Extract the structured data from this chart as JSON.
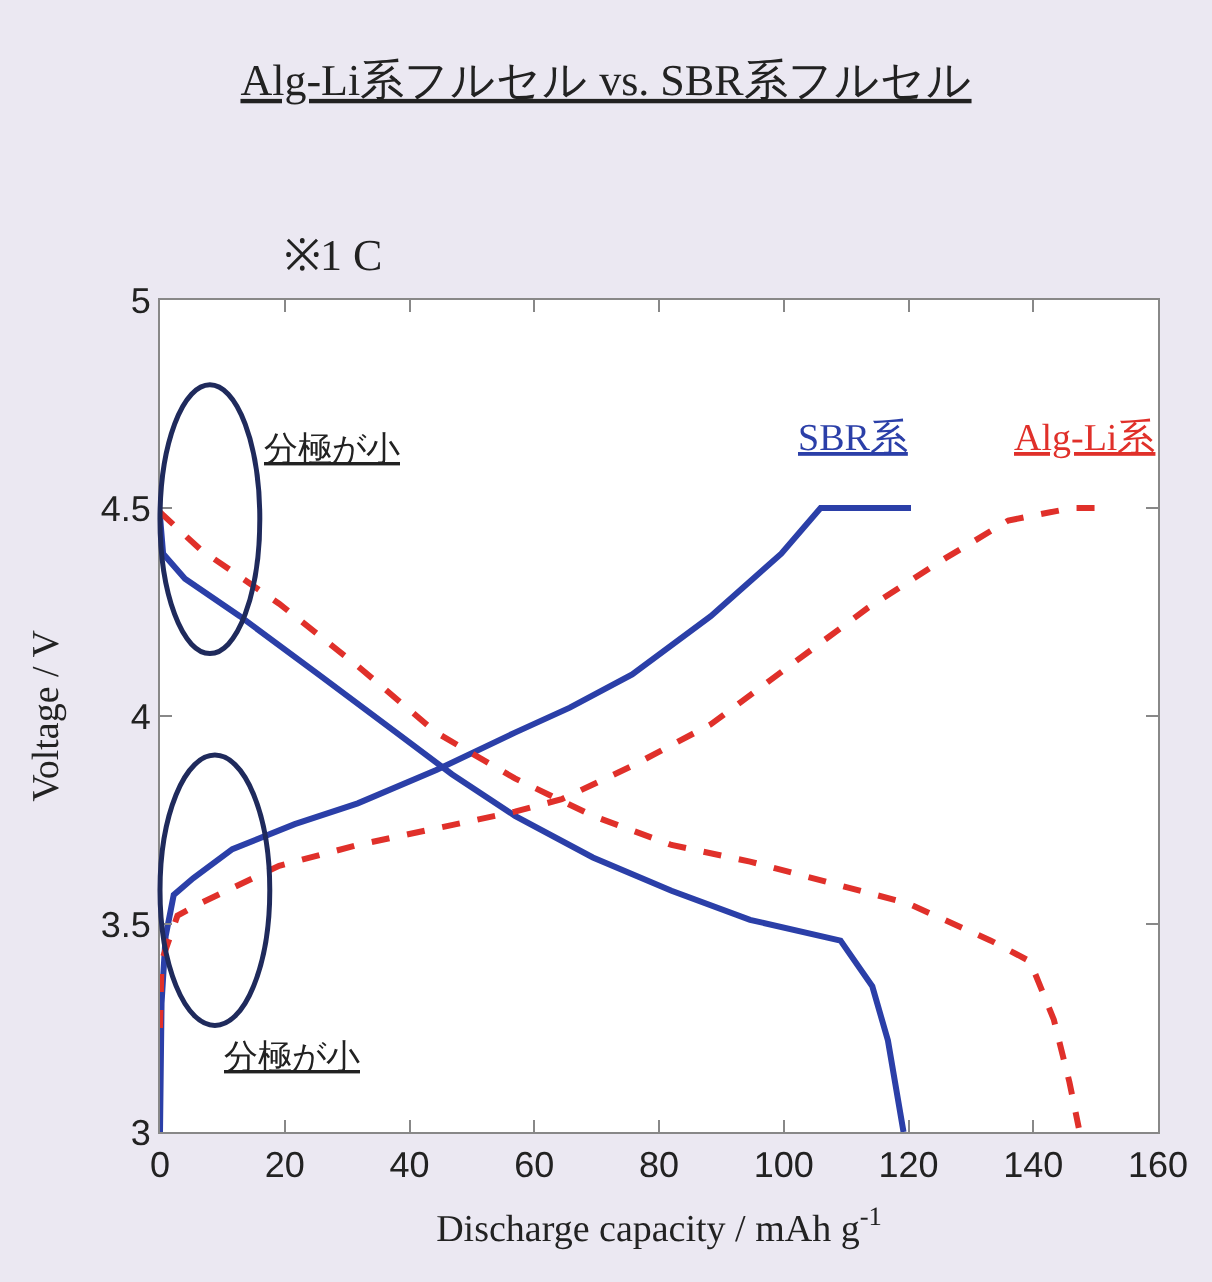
{
  "chart_data": {
    "type": "line",
    "title": "Alg-Li系フルセル vs. SBR系フルセル",
    "xlabel": "Discharge capacity / mAh g$^{-1}$",
    "ylabel": "Voltage / V",
    "xlim": [
      0,
      160
    ],
    "xticks": [
      0,
      20,
      40,
      60,
      80,
      100,
      120,
      140,
      160
    ],
    "ylim": [
      3,
      5
    ],
    "yticks": [
      3,
      3.5,
      4,
      4.5,
      5
    ],
    "legend": false,
    "marker": "none",
    "annotations": [
      "※1 C",
      "分極が小",
      "分極が小"
    ],
    "series": [
      {
        "name": "SBR系",
        "color": "#2b3fa8",
        "line_style": "solid",
        "x": [
          0,
          0.25,
          0.9,
          2.2,
          5.3,
          11.6,
          21.6,
          31.7,
          44.3,
          56.9,
          65.7,
          75.7,
          88.3,
          99.6,
          105.9,
          120.4
        ],
        "values": [
          3.0,
          3.31,
          3.47,
          3.57,
          3.61,
          3.68,
          3.74,
          3.79,
          3.87,
          3.96,
          4.02,
          4.1,
          4.24,
          4.39,
          4.5,
          4.5
        ]
      },
      {
        "color": "#2b3fa8",
        "line_style": "solid",
        "x": [
          0,
          0.5,
          4,
          12.8,
          25.4,
          37.9,
          46.8,
          56.9,
          69.4,
          82,
          94.6,
          109.1,
          114.2,
          116.7,
          119.2
        ],
        "values": [
          4.48,
          4.39,
          4.33,
          4.24,
          4.1,
          3.96,
          3.86,
          3.76,
          3.66,
          3.58,
          3.51,
          3.46,
          3.35,
          3.22,
          3.0
        ]
      },
      {
        "name": "Alg-Li系",
        "color": "#e0302a",
        "line_style": "dashed",
        "x": [
          0,
          0.25,
          2.8,
          6.5,
          19.1,
          31.7,
          44.3,
          56.9,
          64.4,
          75.7,
          88.3,
          100.9,
          113.5,
          126,
          136,
          146.2,
          150.6
        ],
        "values": [
          3.25,
          3.41,
          3.52,
          3.55,
          3.64,
          3.69,
          3.73,
          3.77,
          3.8,
          3.88,
          3.98,
          4.12,
          4.26,
          4.38,
          4.47,
          4.5,
          4.5
        ]
      },
      {
        "color": "#e0302a",
        "line_style": "dashed",
        "x": [
          0,
          6.5,
          19.1,
          31.7,
          44.3,
          56.9,
          69.4,
          82,
          94.6,
          107.2,
          119.8,
          133.2,
          139.5,
          143.3,
          145.8,
          147.3
        ],
        "values": [
          4.49,
          4.4,
          4.27,
          4.12,
          3.96,
          3.85,
          3.76,
          3.69,
          3.65,
          3.6,
          3.55,
          3.46,
          3.41,
          3.27,
          3.12,
          3.01
        ]
      }
    ]
  }
}
